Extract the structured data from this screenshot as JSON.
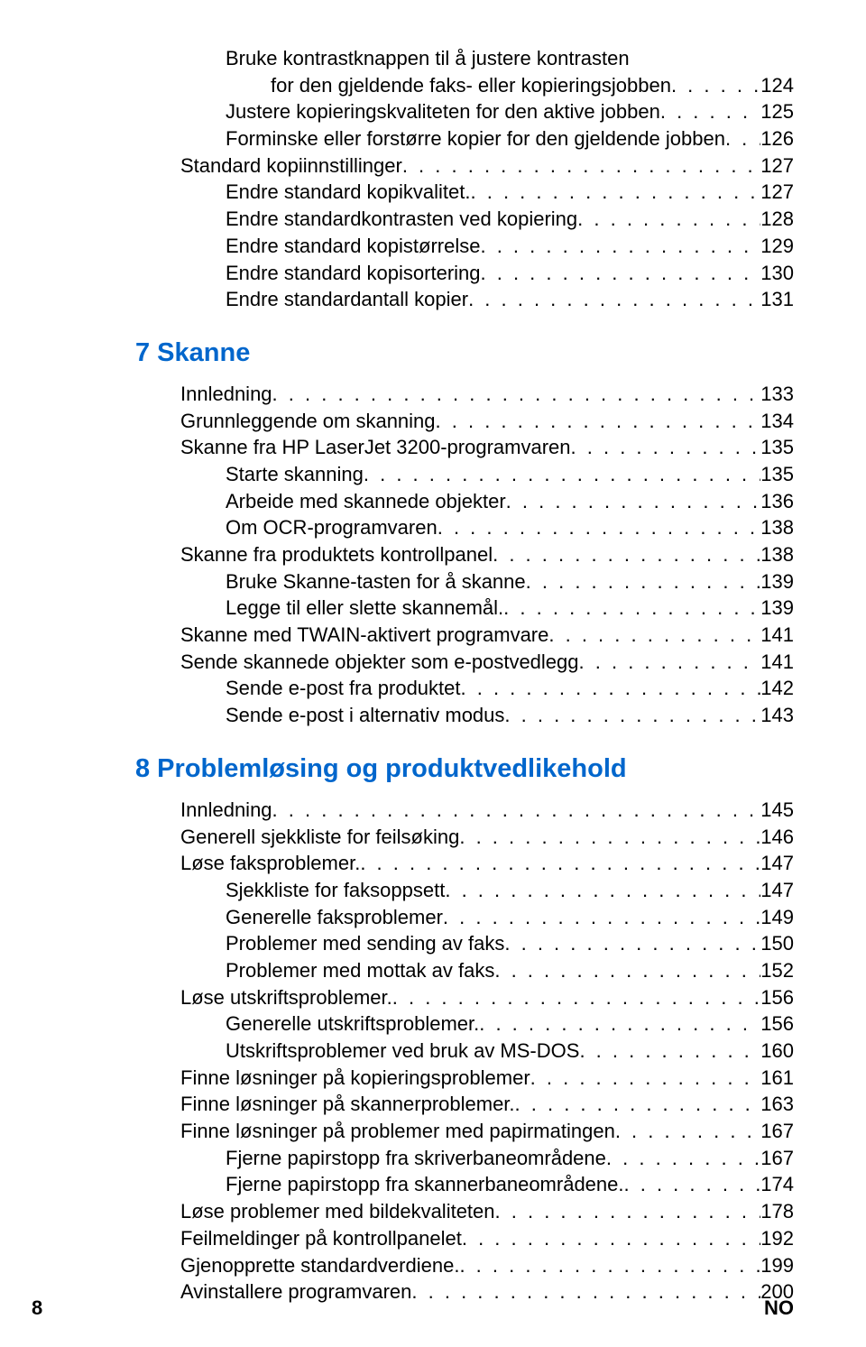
{
  "pageNumber": "8",
  "langCode": "NO",
  "section6continued": {
    "entries": [
      {
        "label": "Bruke kontrastknappen til å justere kontrasten",
        "page": "",
        "indent": 1,
        "multiline": true
      },
      {
        "label": "for den gjeldende faks- eller kopieringsjobben",
        "page": "124",
        "indent": 2,
        "continuation": true
      },
      {
        "label": "Justere kopieringskvaliteten for den aktive jobben",
        "page": "125",
        "indent": 1
      },
      {
        "label": "Forminske eller forstørre kopier for den gjeldende jobben",
        "page": "126",
        "indent": 1
      },
      {
        "label": "Standard kopiinnstillinger",
        "page": "127",
        "indent": 0
      },
      {
        "label": "Endre standard kopikvalitet.",
        "page": "127",
        "indent": 1
      },
      {
        "label": "Endre standardkontrasten ved kopiering",
        "page": "128",
        "indent": 1
      },
      {
        "label": "Endre standard kopistørrelse",
        "page": "129",
        "indent": 1
      },
      {
        "label": "Endre standard kopisortering",
        "page": "130",
        "indent": 1
      },
      {
        "label": "Endre standardantall kopier",
        "page": "131",
        "indent": 1
      }
    ]
  },
  "section7": {
    "heading": "7 Skanne",
    "entries": [
      {
        "label": "Innledning",
        "page": "133",
        "indent": 0
      },
      {
        "label": "Grunnleggende om skanning",
        "page": "134",
        "indent": 0
      },
      {
        "label": "Skanne fra HP LaserJet 3200-programvaren",
        "page": "135",
        "indent": 0
      },
      {
        "label": "Starte skanning",
        "page": "135",
        "indent": 1
      },
      {
        "label": "Arbeide med skannede objekter ",
        "page": "136",
        "indent": 1
      },
      {
        "label": "Om OCR-programvaren",
        "page": "138",
        "indent": 1
      },
      {
        "label": "Skanne fra produktets kontrollpanel",
        "page": "138",
        "indent": 0
      },
      {
        "label": "Bruke Skanne-tasten for å skanne",
        "page": "139",
        "indent": 1
      },
      {
        "label": "Legge til eller slette skannemål.",
        "page": "139",
        "indent": 1
      },
      {
        "label": "Skanne med TWAIN-aktivert programvare",
        "page": "141",
        "indent": 0
      },
      {
        "label": "Sende skannede objekter som e-postvedlegg",
        "page": "141",
        "indent": 0
      },
      {
        "label": "Sende e-post fra produktet",
        "page": "142",
        "indent": 1
      },
      {
        "label": "Sende e-post i alternativ modus ",
        "page": "143",
        "indent": 1
      }
    ]
  },
  "section8": {
    "heading": "8 Problemløsing og produktvedlikehold",
    "entries": [
      {
        "label": "Innledning",
        "page": "145",
        "indent": 0
      },
      {
        "label": "Generell sjekkliste for feilsøking",
        "page": "146",
        "indent": 0
      },
      {
        "label": "Løse faksproblemer.",
        "page": "147",
        "indent": 0
      },
      {
        "label": "Sjekkliste for faksoppsett",
        "page": "147",
        "indent": 1
      },
      {
        "label": "Generelle faksproblemer",
        "page": "149",
        "indent": 1
      },
      {
        "label": "Problemer med sending av faks",
        "page": "150",
        "indent": 1
      },
      {
        "label": "Problemer med mottak av faks",
        "page": "152",
        "indent": 1
      },
      {
        "label": "Løse utskriftsproblemer.",
        "page": "156",
        "indent": 0
      },
      {
        "label": "Generelle utskriftsproblemer.",
        "page": "156",
        "indent": 1
      },
      {
        "label": "Utskriftsproblemer ved bruk av MS-DOS",
        "page": "160",
        "indent": 1
      },
      {
        "label": "Finne løsninger på kopieringsproblemer",
        "page": "161",
        "indent": 0
      },
      {
        "label": "Finne løsninger på skannerproblemer.",
        "page": "163",
        "indent": 0
      },
      {
        "label": "Finne løsninger på problemer med papirmatingen",
        "page": "167",
        "indent": 0
      },
      {
        "label": "Fjerne papirstopp fra skriverbaneområdene",
        "page": "167",
        "indent": 1
      },
      {
        "label": "Fjerne papirstopp fra skannerbaneområdene.",
        "page": "174",
        "indent": 1
      },
      {
        "label": "Løse problemer med bildekvaliteten",
        "page": "178",
        "indent": 0
      },
      {
        "label": "Feilmeldinger på kontrollpanelet",
        "page": "192",
        "indent": 0
      },
      {
        "label": "Gjenopprette standardverdiene.",
        "page": "199",
        "indent": 0
      },
      {
        "label": "Avinstallere programvaren",
        "page": "200",
        "indent": 0
      }
    ]
  }
}
